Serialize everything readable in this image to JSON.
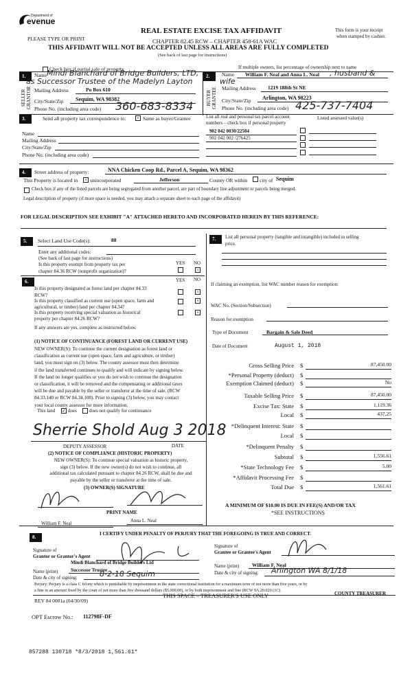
{
  "header": {
    "logo_text": "Department of Revenue",
    "please": "PLEASE TYPE OR PRINT",
    "title": "REAL ESTATE EXCISE TAX AFFIDAVIT",
    "chapter": "CHAPTER 82.45 RCW – CHAPTER 458-61A WAC",
    "receipt1": "This form is your receipt",
    "receipt2": "when stamped by cashier.",
    "warning": "THIS AFFIDAVIT WILL NOT BE ACCEPTED UNLESS ALL AREAS ARE FULLY COMPLETED",
    "see_back": "(See back of last page for instructions)"
  },
  "partial": "Check box if partial sale of property",
  "multiple": "If multiple owners, list percentage of ownership next to name",
  "seller": {
    "num": "1.",
    "side": "SELLER GRANTOR",
    "name_label": "Name",
    "name_hw1": "Mindi Blanchard of Bridge Builders, LTD,",
    "name_hw2": "as Successor Trustee of the Madelyn Layton",
    "mail_label": "Mailing Address",
    "mail": "Po Box 610",
    "city_label": "City/State/Zip",
    "city": "Sequim, WA 98382",
    "phone_label": "Phone No. (including area code)",
    "phone": "360-683-8334"
  },
  "buyer": {
    "num": "2.",
    "side": "BUYER GRANTEE",
    "name_label": "Name",
    "name": "William F. Neal and Anna L. Neal",
    "name_hw1": ", husband &",
    "name_hw2": "wife",
    "mail_label": "Mailing Address",
    "mail": "1219 188th St NE",
    "city_label": "City/State/Zip",
    "city": "Arlington, WA 98223",
    "phone_label": "Phone No. (including area code)",
    "phone": "425-737-7404"
  },
  "sec3": {
    "num": "3.",
    "text": "Send all property tax correspondence to:",
    "same": "Same as buyer/Grantee",
    "name": "Name",
    "mail": "Mailing Address",
    "city": "City/State/Zip",
    "phone": "Phone No. (including area code)"
  },
  "parcels": {
    "label1": "List all real and personal tax parcel account",
    "label2": "numbers – check box if personal property",
    "assessed": "Listed assessed value(s)",
    "items": [
      "902 042 0030/22504",
      "902 042 002 /276425"
    ]
  },
  "sec4": {
    "num": "4.",
    "street_label": "Street address of property:",
    "street": "NNA Chicken Coop Rd., Parcel A, Sequim, WA  98362",
    "located": "This Property is located in",
    "unincorporated": "unincorporated",
    "county": "Jefferson",
    "county_or": "County OR  within",
    "city_of": "city of",
    "city": "Sequim",
    "segregated": "Check box if any of the listed parcels are being segregated from another parcel, are part of boundary line adjustment or parcels being merged.",
    "legal": "Legal description of property (if more space is needed, you may attach a separate sheet to each page of the affidavit)",
    "exhibit": "FOR LEGAL DESCRIPTION SEE EXHIBIT \"A\" ATTACHED HERETO AND INCORPORATED HEREIN BY THIS REFERENCE:"
  },
  "sec5": {
    "num": "5.",
    "label": "Select Land Use Code(s):",
    "code": "88",
    "additional": "Enter any additional codes:",
    "see_back": "(See back of last page for instructions)",
    "q1": "Is this property exempt from property tax per",
    "q2": "chapter 84.36 RCW (nonprofit organization)?",
    "yes": "YES",
    "no": "NO"
  },
  "sec6": {
    "num": "6.",
    "yes": "YES",
    "no": "NO",
    "q": [
      [
        "Is this property designated as forest land per chapter 84.33",
        "RCW?"
      ],
      [
        "Is this property classified as current use (open space, farm and",
        "agricultural, or timber) land per chapter 84.34?"
      ],
      [
        "Is this property receiving special valuation as historical",
        "property per chapter 84.26 RCW?"
      ]
    ],
    "if_yes": "If any answers are yes, complete as instructed below.",
    "notice1_title": "(1) NOTICE OF CONTINUANCE (FOREST LAND OR CURRENT USE)",
    "notice1": [
      "NEW OWNER(S): To continue the current designation as forest land or",
      "classification as current use (open space, farm and agriculture, or timber)",
      "land, you must sign on (3) below.  The county assessor must then determine",
      "if the land transferred continues to qualify and will indicate by signing below.",
      "If the land no longer qualifies or you do not wish to continue the designation",
      "or classification, it will be removed and the compensating or additional taxes",
      "will be due and payable by the seller or transferor at the time of sale.  (RCW",
      "84.33.140 or RCW 84.34.108). Prior to signing (3) below, you may contact",
      "your local county assessor for more information."
    ],
    "this_land": "This land",
    "does": "does",
    "does_not": "does not  qualify for continuance",
    "assessor_sig": "Sherrie Shold Aug 3 2018",
    "deputy": "DEPUTY ASSESSOR",
    "date": "DATE",
    "notice2_title": "(2) NOTICE OF COMPLIANCE (HISTORIC PROPERTY)",
    "notice2": [
      "NEW OWNER(S):  To continue special valuation as historic property,",
      "sign (3) below.  If the new owner(s) do not wish to continue, all",
      "additional tax calculated pursuant to chapter 84.26 RCW, shall be due and",
      "payable by the seller or transferor at the time of sale."
    ],
    "owner_sig": "(3) OWNER(S) SIGNATURE",
    "print_name": "PRINT NAME",
    "owner1": "William F. Neal",
    "owner2": "Anna L. Neal"
  },
  "sec7": {
    "num": "7.",
    "text1": "List all personal property (tangible and intangible) included in selling",
    "text2": "price.",
    "claiming": "If claiming an exemption, list WAC number reason for exemption:",
    "wac": "WAC No. (Section/Subsection)",
    "reason": "Reason for exemption",
    "type_label": "Type of Document",
    "type": "Bargain & Sale Deed",
    "date_label": "Date of Document",
    "date": "August 1, 2018",
    "amounts": [
      {
        "label": "Gross Selling Price",
        "value": "87,450.00"
      },
      {
        "label": "*Personal Property (deduct)",
        "value": ""
      },
      {
        "label": "Exemption Claimed (deduct)",
        "value": "No"
      },
      {
        "label": "Taxable Selling Price",
        "value": "87,450.00"
      },
      {
        "label": "Excise Tax:  State",
        "value": "1,119.36"
      },
      {
        "label": "Local",
        "value": "437.25"
      },
      {
        "label": "*Delinquent Interest:  State",
        "value": ""
      },
      {
        "label": "Local",
        "value": ""
      },
      {
        "label": "*Delinquent Penalty",
        "value": ""
      },
      {
        "label": "Subtotal",
        "value": "1,556.61"
      },
      {
        "label": "*State Technology Fee",
        "value": "5.00"
      },
      {
        "label": "*Affidavit Processing Fee",
        "value": ""
      },
      {
        "label": "Total Due",
        "value": "1,561.61"
      }
    ],
    "dollar": "$",
    "minimum": "A MINIMUM OF $10.00 IS DUE IN FEE(S) AND/OR TAX",
    "see_instr": "*SEE INSTRUCTIONS"
  },
  "sec8": {
    "num": "8.",
    "certify": "I CERTIFY UNDER PENALTY OF PERJURY THAT THE FOREGOING IS TRUE AND CORRECT.",
    "grantor_sig1": "Signature of",
    "grantor_sig2": "Grantor or Grantor's Agent",
    "grantor_name1": "Mindi Blanchard of Bridge Builders Ltd",
    "grantor_name2": "Successor Trustee",
    "name_print": "Name (print)",
    "date_city": "Date & city of signing:",
    "grantor_date": "8-2-18  Sequim",
    "grantee_sig1": "Signature of",
    "grantee_sig2": "Grantee or Grantee's Agent",
    "grantee_name": "William F. Neal",
    "grantee_date": "Arlington WA     8/1/18",
    "perjury1": "Perjury:  Perjury is a class C felony which is punishable by imprisonment in the state correctional institution for a maximum term of not more than five years, or by",
    "perjury2": "a fine in an amount fixed by the court of not more than five thousand dollars ($5,000.00), or by both imprisonment and fine (RCW 9A.20.020 (1C).",
    "treasurer_use": "THIS SPACE – TREASURER'S USE ONLY",
    "county_treasurer": "COUNTY TREASURER",
    "rev": "REV 84 0001a (04/30/09)"
  },
  "escrow": {
    "label": "OPT Escrow No.:",
    "value": "112798F-DF"
  },
  "stamp": "857288 130718 *8/3/2018 1,561.61*"
}
